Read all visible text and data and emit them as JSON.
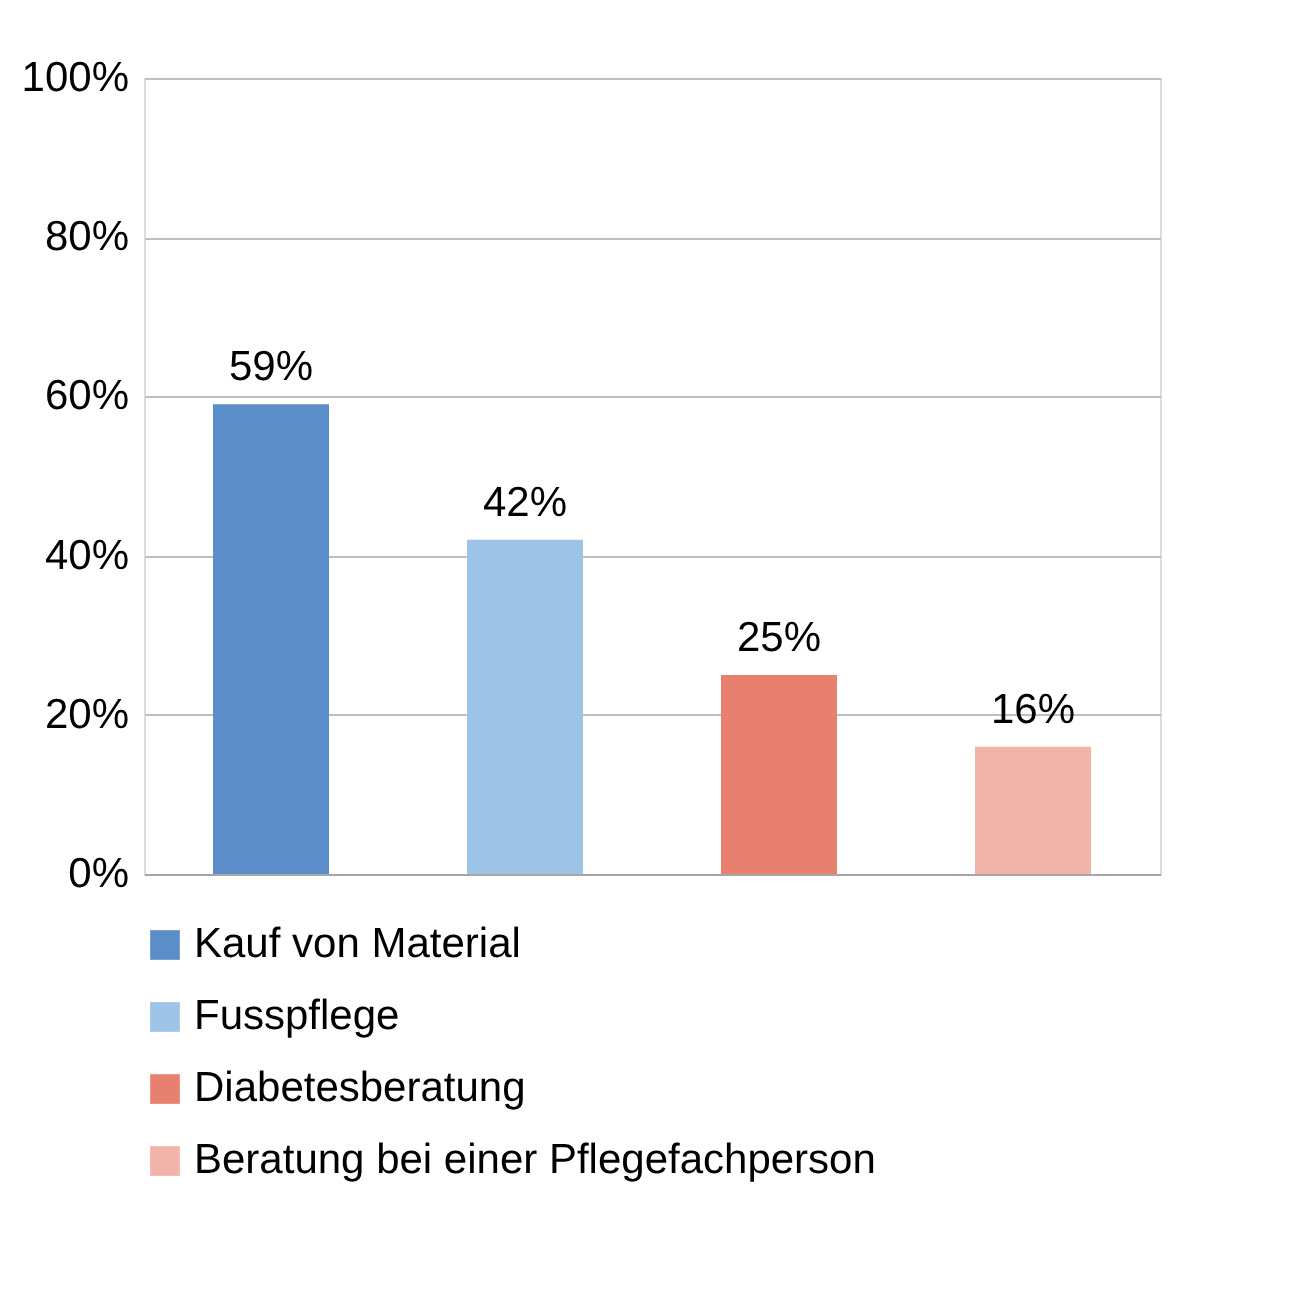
{
  "chart_data": {
    "type": "bar",
    "categories": [
      null,
      null,
      null,
      null
    ],
    "series": [
      {
        "name": "Kauf von Material",
        "color": "#5b8ec9",
        "values": [
          59,
          null,
          null,
          null
        ],
        "value_labels": [
          "59%",
          null,
          null,
          null
        ]
      },
      {
        "name": "Fusspflege",
        "color": "#9dc3e6",
        "values": [
          null,
          42,
          null,
          null
        ],
        "value_labels": [
          null,
          "42%",
          null,
          null
        ]
      },
      {
        "name": "Diabetesberatung",
        "color": "#e8806f",
        "values": [
          null,
          null,
          25,
          null
        ],
        "value_labels": [
          null,
          null,
          "25%",
          null
        ]
      },
      {
        "name": "Beratung bei einer Pflegefachperson",
        "color": "#f2b4a8",
        "values": [
          null,
          null,
          null,
          16
        ],
        "value_labels": [
          null,
          null,
          null,
          "16%"
        ]
      }
    ],
    "ylim": [
      0,
      100
    ],
    "yticks": [
      {
        "value": 0,
        "label": "0%"
      },
      {
        "value": 20,
        "label": "20%"
      },
      {
        "value": 40,
        "label": "40%"
      },
      {
        "value": 60,
        "label": "60%"
      },
      {
        "value": 80,
        "label": "80%"
      },
      {
        "value": 100,
        "label": "100%"
      }
    ],
    "grid": "y",
    "legend": "bottom",
    "tick_labels": "y"
  }
}
